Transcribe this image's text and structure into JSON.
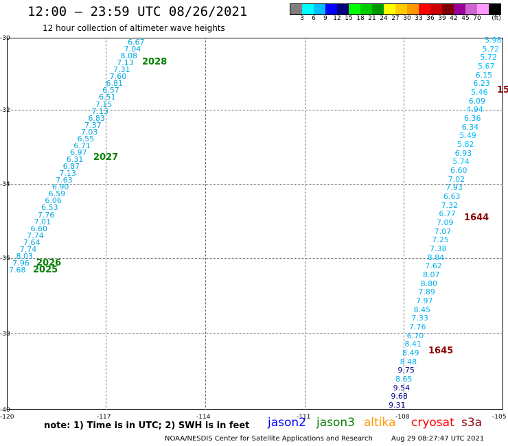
{
  "header": {
    "title": "12:00 – 23:59 UTC 08/26/2021",
    "subtitle": "12 hour collection of altimeter wave heights"
  },
  "colorbar": {
    "colors": [
      "#7f7f7f",
      "#00ffff",
      "#00bfff",
      "#0000ff",
      "#00007f",
      "#00ff00",
      "#00cc00",
      "#009900",
      "#ffff00",
      "#ffcc00",
      "#ff9900",
      "#ff0000",
      "#cc0000",
      "#7f0000",
      "#990099",
      "#cc66cc",
      "#ff99ff",
      "#000000"
    ],
    "labels": [
      "3",
      "6",
      "9",
      "12",
      "15",
      "18",
      "21",
      "24",
      "27",
      "30",
      "33",
      "36",
      "39",
      "42",
      "45",
      "70",
      "(ft)"
    ]
  },
  "axes": {
    "y_labels": [
      "-30",
      "-32",
      "-34",
      "-36",
      "-38",
      "-40"
    ],
    "x_labels": [
      "-120",
      "-117",
      "-114",
      "-111",
      "-108",
      "-105"
    ]
  },
  "passes": [
    {
      "id": "2028",
      "color": "#008000"
    },
    {
      "id": "2027",
      "color": "#008000"
    },
    {
      "id": "2026",
      "color": "#008000"
    },
    {
      "id": "2025",
      "color": "#008000"
    },
    {
      "id": "15",
      "color": "#8b0000"
    },
    {
      "id": "1644",
      "color": "#8b0000"
    },
    {
      "id": "1645",
      "color": "#8b0000"
    }
  ],
  "track_left": [
    "6.67",
    "7.04",
    "8.08",
    "7.13",
    "7.31",
    "7.60",
    "6.81",
    "6.57",
    "6.51",
    "7.15",
    "7.13",
    "6.83",
    "7.37",
    "7.03",
    "6.55",
    "6.71",
    "6.97",
    "6.31",
    "6.87",
    "7.13",
    "7.63",
    "6.90",
    "6.59",
    "6.06",
    "6.53",
    "7.76",
    "7.01",
    "6.60",
    "7.74",
    "7.64",
    "7.74",
    "8.03",
    "7.96",
    "7.68"
  ],
  "track_right": [
    "5.98",
    "5.72",
    "5.72",
    "5.67",
    "6.15",
    "6.23",
    "5.46",
    "6.09",
    "4.94",
    "6.36",
    "6.34",
    "5.49",
    "5.82",
    "6.93",
    "5.74",
    "6.60",
    "7.02",
    "7.93",
    "6.63",
    "7.32",
    "6.77",
    "7.09",
    "7.07",
    "7.25",
    "7.38",
    "8.84",
    "7.62",
    "8.07",
    "8.80",
    "7.89",
    "7.97",
    "8.45",
    "7.33",
    "7.76",
    "6.70",
    "8.41",
    "8.49",
    "8.48",
    "9.75",
    "8.65",
    "9.54",
    "9.68",
    "9.31"
  ],
  "legend": {
    "note": "note:  1) Time is in UTC;  2) SWH is in feet",
    "items": [
      {
        "label": "jason2",
        "color": "#0000ff"
      },
      {
        "label": "jason3",
        "color": "#008000"
      },
      {
        "label": "altika",
        "color": "#ff9900"
      },
      {
        "label": "cryosat",
        "color": "#ff0000"
      },
      {
        "label": "s3a",
        "color": "#8b0000"
      }
    ]
  },
  "footer": {
    "credit": "NOAA/NESDIS Center for Satellite Applications and Research",
    "timestamp": "Aug 29 08:27:47 UTC 2021"
  }
}
